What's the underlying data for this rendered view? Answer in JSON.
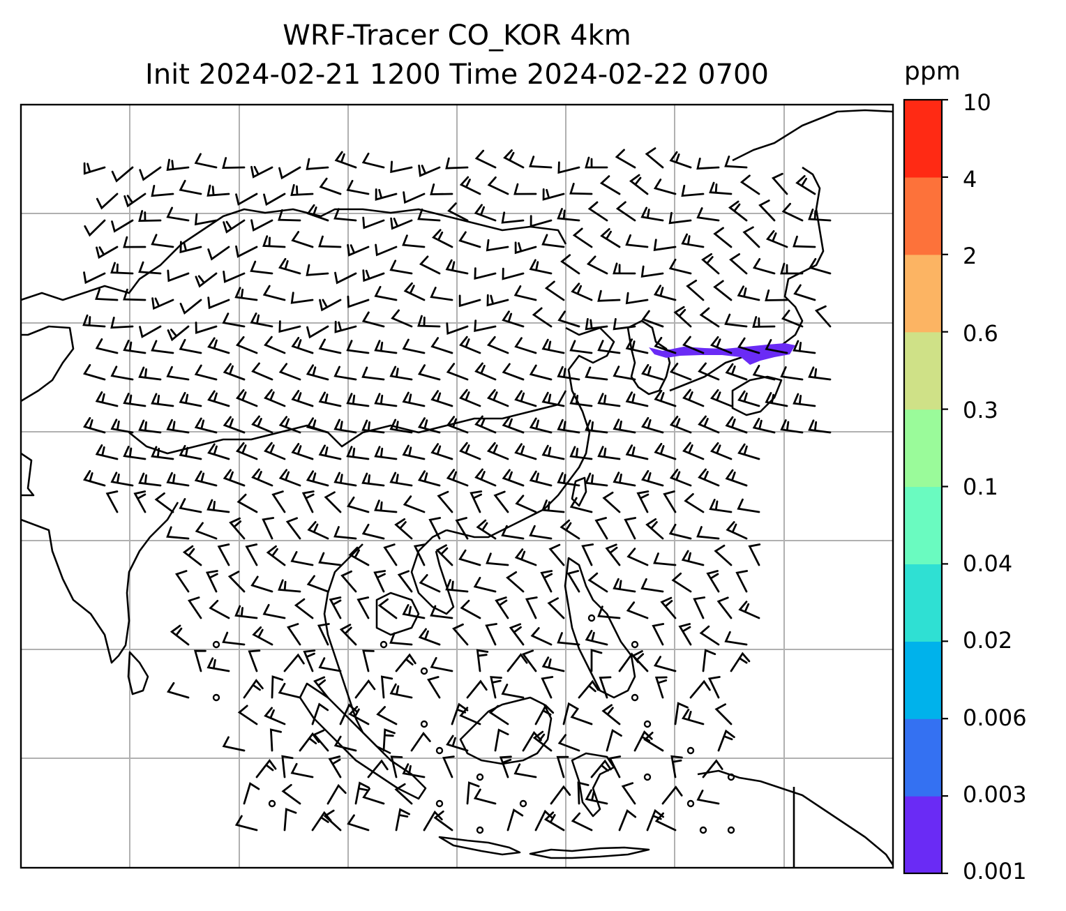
{
  "title_line1": "WRF-Tracer CO_KOR 4km",
  "title_line2": "Init 2024-02-21 1200 Time 2024-02-22 0700",
  "colorbar": {
    "unit": "ppm",
    "labels": [
      "0.001",
      "0.003",
      "0.006",
      "0.02",
      "0.04",
      "0.1",
      "0.3",
      "0.6",
      "2",
      "4",
      "10"
    ],
    "colors": [
      "#6a2bf5",
      "#3471f2",
      "#00b2eb",
      "#2fe0d3",
      "#6afbc0",
      "#9afb9a",
      "#cfe187",
      "#fcb463",
      "#fd723a",
      "#ff2a14"
    ]
  },
  "map": {
    "coastline_color": "#000000",
    "grid_color": "#b0b0b0",
    "plume_color": "#6a2bf5",
    "wind_barbs": "black"
  }
}
